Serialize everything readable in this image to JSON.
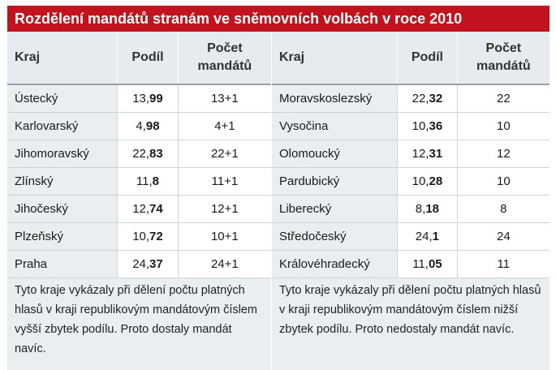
{
  "title": "Rozdělení mandátů stranám ve sněmovních volbách v roce 2010",
  "headers": {
    "kraj": "Kraj",
    "podil": "Podíl",
    "pocet_line1": "Počet",
    "pocet_line2": "mandátů"
  },
  "left": {
    "rows": [
      {
        "kraj": "Ústecký",
        "podil_int": "13,",
        "podil_dec": "99",
        "mandaty": "13+1"
      },
      {
        "kraj": "Karlovarský",
        "podil_int": "4,",
        "podil_dec": "98",
        "mandaty": "4+1"
      },
      {
        "kraj": "Jihomoravský",
        "podil_int": "22,",
        "podil_dec": "83",
        "mandaty": "22+1"
      },
      {
        "kraj": "Zlínský",
        "podil_int": "11,",
        "podil_dec": "8",
        "mandaty": "11+1"
      },
      {
        "kraj": "Jihočeský",
        "podil_int": "12,",
        "podil_dec": "74",
        "mandaty": "12+1"
      },
      {
        "kraj": "Plzeňský",
        "podil_int": "10,",
        "podil_dec": "72",
        "mandaty": "10+1"
      },
      {
        "kraj": "Praha",
        "podil_int": "24,",
        "podil_dec": "37",
        "mandaty": "24+1"
      }
    ],
    "note": "Tyto kraje vykázaly při dělení počtu platných hlasů v kraji republikovým mandátovým číslem vyšší zbytek podílu. Proto dostaly mandát navíc."
  },
  "right": {
    "rows": [
      {
        "kraj": "Moravskoslezský",
        "podil_int": "22,",
        "podil_dec": "32",
        "mandaty": "22"
      },
      {
        "kraj": "Vysočina",
        "podil_int": "10,",
        "podil_dec": "36",
        "mandaty": "10"
      },
      {
        "kraj": "Olomoucký",
        "podil_int": "12,",
        "podil_dec": "31",
        "mandaty": "12"
      },
      {
        "kraj": "Pardubický",
        "podil_int": "10,",
        "podil_dec": "28",
        "mandaty": "10"
      },
      {
        "kraj": "Liberecký",
        "podil_int": "8,",
        "podil_dec": "18",
        "mandaty": "8"
      },
      {
        "kraj": "Středočeský",
        "podil_int": "24,",
        "podil_dec": "1",
        "mandaty": "24"
      },
      {
        "kraj": "Královéhradecký",
        "podil_int": "11,",
        "podil_dec": "05",
        "mandaty": "11"
      }
    ],
    "note": "Tyto kraje vykázaly při dělení počtu platných hlasů v kraji republikovým mandátovým číslem nižší zbytek podílu. Proto nedostaly mandát navíc."
  },
  "colors": {
    "title_bg": "#c2121d",
    "header_bg": "#e6ebef",
    "name_bg": "#e9eef1"
  }
}
